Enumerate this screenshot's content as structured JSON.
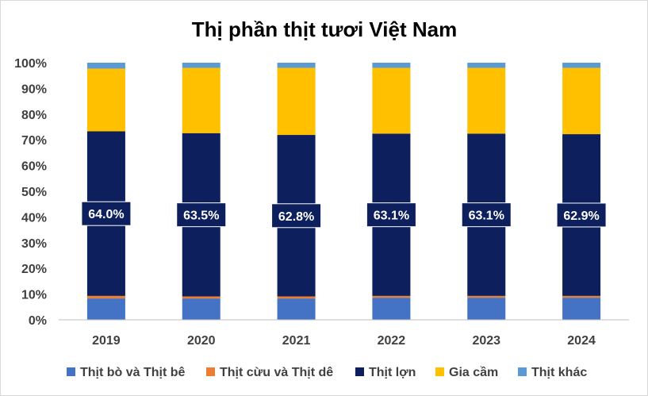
{
  "chart_data": {
    "type": "bar",
    "stacked": true,
    "normalized": true,
    "title": "Thị phần thịt tươi Việt Nam",
    "xlabel": "",
    "ylabel": "",
    "categories": [
      "2019",
      "2020",
      "2021",
      "2022",
      "2023",
      "2024"
    ],
    "yticks": [
      "0%",
      "10%",
      "20%",
      "30%",
      "40%",
      "50%",
      "60%",
      "70%",
      "80%",
      "90%",
      "100%"
    ],
    "ylim": [
      0,
      100
    ],
    "grid": false,
    "legend_position": "bottom",
    "series": [
      {
        "name": "Thịt bò và Thịt bê",
        "color": "#4472c4",
        "values": [
          8.3,
          8.3,
          8.3,
          8.6,
          8.6,
          8.6
        ]
      },
      {
        "name": "Thịt cừu và Thịt dê",
        "color": "#ed7d31",
        "values": [
          1.0,
          0.8,
          0.8,
          0.7,
          0.7,
          0.7
        ]
      },
      {
        "name": "Thịt lợn",
        "color": "#0d1f5c",
        "values": [
          64.0,
          63.5,
          62.8,
          63.1,
          63.1,
          62.9
        ]
      },
      {
        "name": "Gia cầm",
        "color": "#ffc000",
        "values": [
          24.4,
          25.4,
          26.1,
          25.6,
          25.6,
          25.8
        ]
      },
      {
        "name": "Thịt khác",
        "color": "#5b9bd5",
        "values": [
          2.3,
          2.0,
          2.0,
          2.0,
          2.0,
          2.0
        ]
      }
    ],
    "data_labels": {
      "series": "Thịt lợn",
      "texts": [
        "64.0%",
        "63.5%",
        "62.8%",
        "63.1%",
        "63.1%",
        "62.9%"
      ]
    }
  }
}
